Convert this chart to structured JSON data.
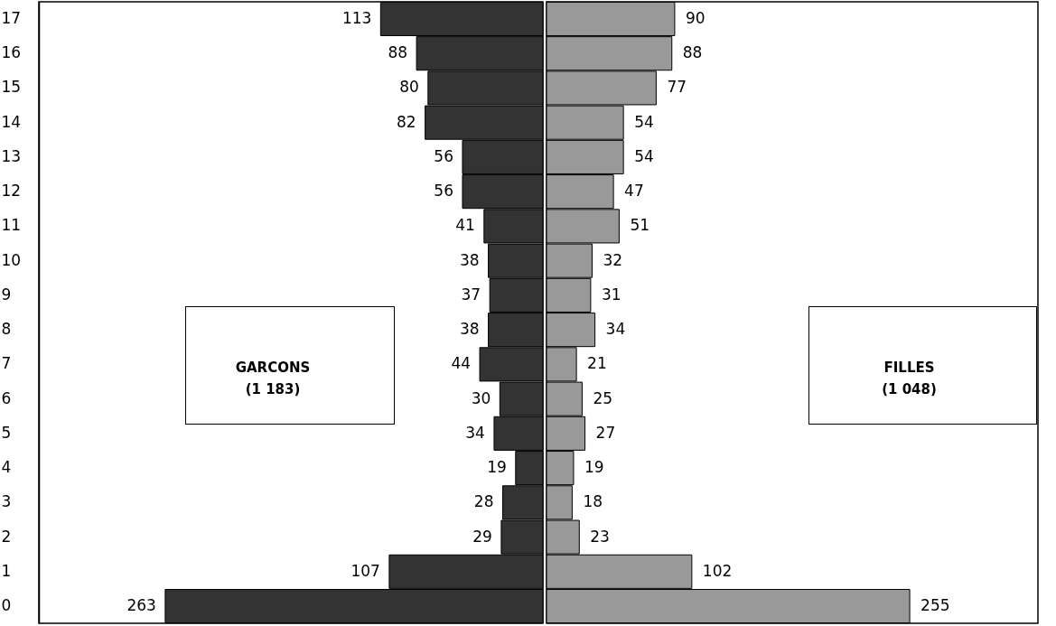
{
  "chart_data": [
    {
      "type": "bar",
      "orientation": "horizontal",
      "categories": [
        "17",
        "16",
        "15",
        "14",
        "13",
        "12",
        "11",
        "10",
        "9",
        "8",
        "7",
        "6",
        "5",
        "4",
        "3",
        "2",
        "1",
        "0"
      ],
      "xlim": [
        351,
        0
      ],
      "tick_labels": "y",
      "series": [
        {
          "name": "GARCONS\n(1 183)",
          "color": "#333333",
          "values": [
            113,
            88,
            80,
            82,
            56,
            56,
            41,
            38,
            37,
            38,
            44,
            30,
            34,
            19,
            28,
            29,
            107,
            263
          ]
        }
      ],
      "data_labels": true
    },
    {
      "type": "bar",
      "orientation": "horizontal",
      "categories": [
        "17",
        "16",
        "15",
        "14",
        "13",
        "12",
        "11",
        "10",
        "9",
        "8",
        "7",
        "6",
        "5",
        "4",
        "3",
        "2",
        "1",
        "0"
      ],
      "xlim": [
        0,
        345
      ],
      "tick_labels": false,
      "series": [
        {
          "name": "FILLES\n(1 048)",
          "color": "#999999",
          "values": [
            90,
            88,
            77,
            54,
            54,
            47,
            51,
            32,
            31,
            34,
            21,
            25,
            27,
            19,
            18,
            23,
            102,
            255
          ]
        }
      ],
      "data_labels": true
    }
  ]
}
